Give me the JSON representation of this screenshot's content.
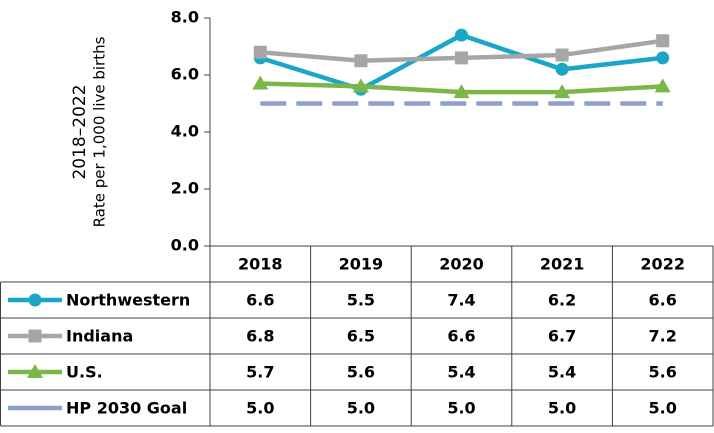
{
  "chart_data": {
    "type": "line",
    "y_axis_label": [
      "2018–2022",
      "Rate per 1,000 live births"
    ],
    "categories": [
      "2018",
      "2019",
      "2020",
      "2021",
      "2022"
    ],
    "series": [
      {
        "name": "Northwestern",
        "color": "#1ba6c9",
        "marker": "circle",
        "values": [
          6.6,
          5.5,
          7.4,
          6.2,
          6.6
        ]
      },
      {
        "name": "Indiana",
        "color": "#a6a6a6",
        "marker": "square",
        "values": [
          6.8,
          6.5,
          6.6,
          6.7,
          7.2
        ]
      },
      {
        "name": "U.S.",
        "color": "#7ab648",
        "marker": "triangle",
        "values": [
          5.7,
          5.6,
          5.4,
          5.4,
          5.6
        ]
      },
      {
        "name": "HP 2030 Goal",
        "color": "#8e9fce",
        "dashed": true,
        "values": [
          5,
          5,
          5,
          5,
          5
        ],
        "value_labels": [
          "5.0",
          "5.0",
          "5.0",
          "5.0",
          "5.0"
        ]
      }
    ],
    "ylim": [
      0,
      8
    ],
    "yticks": [
      {
        "value": 0,
        "label": "0.0"
      },
      {
        "value": 2,
        "label": "2.0"
      },
      {
        "value": 4,
        "label": "4.0"
      },
      {
        "value": 6,
        "label": "6.0"
      },
      {
        "value": 8,
        "label": "8.0"
      }
    ],
    "data_table": true
  }
}
